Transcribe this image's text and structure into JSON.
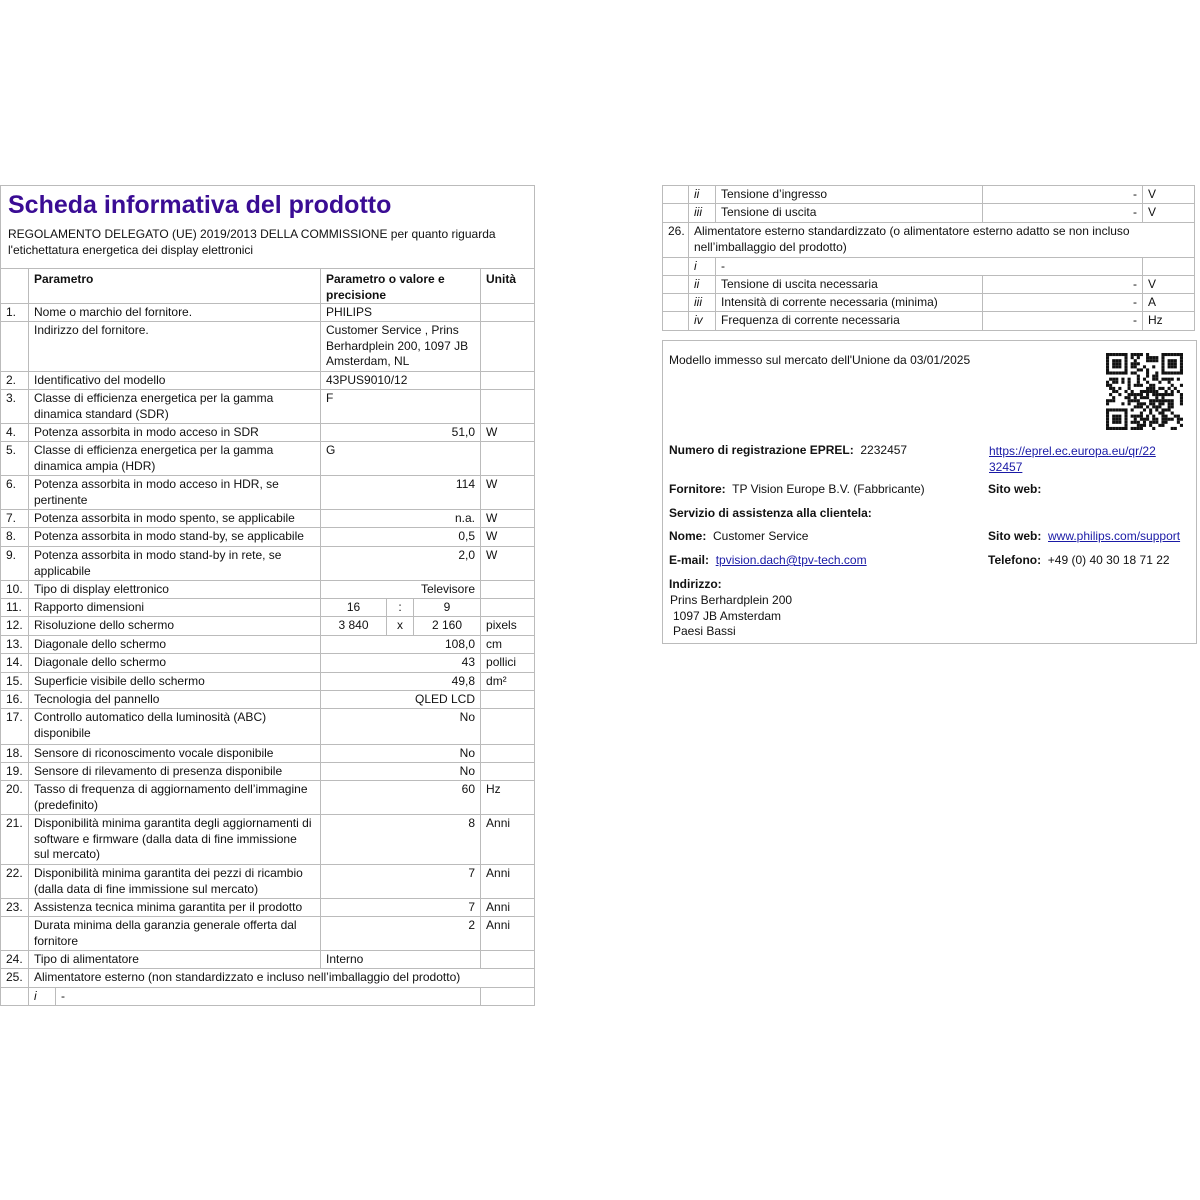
{
  "title": "Scheda informativa del prodotto",
  "subtitle": "REGOLAMENTO DELEGATO (UE) 2019/2013 DELLA COMMISSIONE per quanto riguarda l'etichettatura energetica dei display elettronici",
  "colors": {
    "title": "#3a0c94",
    "link": "#1a1aa6",
    "border": "#bbbbbb"
  },
  "table_headers": {
    "param": "Parametro",
    "value": "Parametro o valore e precisione",
    "unit": "Unità"
  },
  "left_rows": [
    {
      "type": "normal",
      "num": "1.",
      "param": "Nome o marchio del fornitore.",
      "value": "PHILIPS",
      "unit": ""
    },
    {
      "type": "normal",
      "num": "",
      "param": "Indirizzo del fornitore.",
      "value": "Customer Service , Prins Berhardplein 200, 1097 JB Amsterdam, NL",
      "unit": ""
    },
    {
      "type": "normal",
      "num": "2.",
      "param": "Identificativo del modello",
      "value": "43PUS9010/12",
      "unit": ""
    },
    {
      "type": "normal",
      "num": "3.",
      "param": "Classe di efficienza energetica per la gamma dinamica standard (SDR)",
      "value": "F",
      "unit": ""
    },
    {
      "type": "normal",
      "num": "4.",
      "param": "Potenza assorbita in modo acceso in SDR",
      "value": "51,0",
      "unit": "W"
    },
    {
      "type": "normal",
      "num": "5.",
      "param": "Classe di efficienza energetica per la gamma dinamica ampia (HDR)",
      "value": "G",
      "unit": ""
    },
    {
      "type": "normal",
      "num": "6.",
      "param": "Potenza assorbita in modo acceso in HDR, se pertinente",
      "value": "114",
      "unit": "W"
    },
    {
      "type": "normal",
      "num": "7.",
      "param": "Potenza assorbita in modo spento, se applicabile",
      "value": "n.a.",
      "unit": "W"
    },
    {
      "type": "normal",
      "num": "8.",
      "param": "Potenza assorbita in modo stand-by, se applicabile",
      "value": "0,5",
      "unit": "W"
    },
    {
      "type": "normal",
      "num": "9.",
      "param": "Potenza assorbita in modo stand-by in rete, se applicabile",
      "value": "2,0",
      "unit": "W"
    },
    {
      "type": "normal",
      "num": "10.",
      "param": "Tipo di display elettronico",
      "value": "Televisore",
      "unit": ""
    },
    {
      "type": "ratio",
      "num": "11.",
      "param": "Rapporto dimensioni",
      "a": "16",
      "sep": ":",
      "b": "9",
      "unit": ""
    },
    {
      "type": "ratio",
      "num": "12.",
      "param": "Risoluzione dello schermo",
      "a": "3 840",
      "sep": "x",
      "b": "2 160",
      "unit": "pixels"
    },
    {
      "type": "normal",
      "num": "13.",
      "param": "Diagonale dello schermo",
      "value": "108,0",
      "unit": "cm"
    },
    {
      "type": "normal",
      "num": "14.",
      "param": "Diagonale dello schermo",
      "value": "43",
      "unit": "pollici"
    },
    {
      "type": "normal",
      "num": "15.",
      "param": "Superficie visibile dello schermo",
      "value": "49,8",
      "unit": "dm²"
    },
    {
      "type": "normal",
      "num": "16.",
      "param": "Tecnologia del pannello",
      "value": "QLED LCD",
      "unit": ""
    },
    {
      "type": "normal",
      "num": "17.",
      "param": "Controllo automatico della luminosità (ABC) disponibile",
      "value": "No",
      "unit": ""
    },
    {
      "type": "normal",
      "num": "18.",
      "param": "Sensore di riconoscimento vocale disponibile",
      "value": "No",
      "unit": ""
    },
    {
      "type": "normal",
      "num": "19.",
      "param": "Sensore di rilevamento di presenza disponibile",
      "value": "No",
      "unit": ""
    },
    {
      "type": "normal",
      "num": "20.",
      "param": "Tasso di frequenza di aggiornamento dell’immagine (predefinito)",
      "value": "60",
      "unit": "Hz"
    },
    {
      "type": "normal",
      "num": "21.",
      "param": "Disponibilità minima garantita degli aggiornamenti di software e firmware (dalla data di fine immissione sul mercato)",
      "value": "8",
      "unit": "Anni"
    },
    {
      "type": "normal",
      "num": "22.",
      "param": "Disponibilità minima garantita dei pezzi di ricambio (dalla data di fine immissione sul mercato)",
      "value": "7",
      "unit": "Anni"
    },
    {
      "type": "normal",
      "num": "23.",
      "param": "Assistenza tecnica minima garantita per il prodotto",
      "value": "7",
      "unit": "Anni"
    },
    {
      "type": "normal",
      "num": "",
      "param": "Durata minima della garanzia generale offerta dal fornitore",
      "value": "2",
      "unit": "Anni"
    },
    {
      "type": "normal",
      "num": "24.",
      "param": "Tipo di alimentatore",
      "value": "Interno",
      "unit": ""
    },
    {
      "type": "span",
      "num": "25.",
      "text": "Alimentatore esterno (non standardizzato e incluso nell’imballaggio del prodotto)"
    },
    {
      "type": "subdash",
      "roman": "i",
      "text": "-",
      "unit": ""
    }
  ],
  "right_rows": [
    {
      "type": "sub",
      "roman": "ii",
      "param": "Tensione d’ingresso",
      "value": "-",
      "unit": "V"
    },
    {
      "type": "sub",
      "roman": "iii",
      "param": "Tensione di uscita",
      "value": "-",
      "unit": "V"
    },
    {
      "type": "span",
      "num": "26.",
      "text": "Alimentatore esterno standardizzato (o alimentatore esterno adatto se non incluso nell’imballaggio del prodotto)"
    },
    {
      "type": "subdash",
      "roman": "i",
      "text": "-",
      "unit": ""
    },
    {
      "type": "sub",
      "roman": "ii",
      "param": "Tensione di uscita necessaria",
      "value": "-",
      "unit": "V"
    },
    {
      "type": "sub",
      "roman": "iii",
      "param": "Intensità di corrente necessaria (minima)",
      "value": "-",
      "unit": "A"
    },
    {
      "type": "sub",
      "roman": "iv",
      "param": "Frequenza di corrente necessaria",
      "value": "-",
      "unit": "Hz"
    }
  ],
  "info_box": {
    "market_date": "Modello immesso sul mercato dell'Unione da 03/01/2025",
    "eprel_label": "Numero di registrazione EPREL:",
    "eprel_value": "2232457",
    "eprel_link_1": "https://eprel.ec.europa.eu/qr/22",
    "eprel_link_2": "32457",
    "supplier_label": "Fornitore:",
    "supplier_value": "TP Vision Europe B.V. (Fabbricante)",
    "website_label_1": "Sito web:",
    "service_label": "Servizio di assistenza alla clientela:",
    "name_label": "Nome:",
    "name_value": "Customer Service",
    "website_label_2": "Sito web:",
    "website_value": "www.philips.com/support",
    "email_label": "E-mail:",
    "email_value": "tpvision.dach@tpv-tech.com",
    "phone_label": "Telefono:",
    "phone_value": "+49 (0) 40 30 18 71 22",
    "address_label": "Indirizzo:",
    "address_lines": [
      "Prins Berhardplein 200",
      "1097 JB Amsterdam",
      "Paesi Bassi"
    ],
    "qr_icon": "qr-code"
  }
}
